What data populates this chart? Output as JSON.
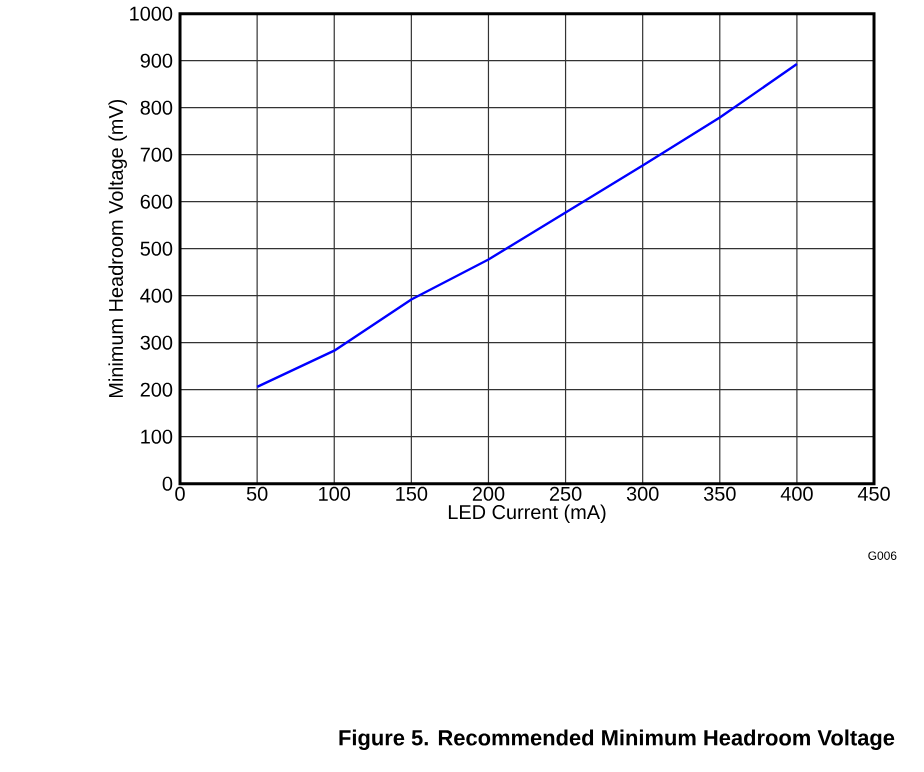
{
  "chart_data": {
    "type": "line",
    "title": "Figure 5. Recommended Minimum Headroom Voltage",
    "xlabel": "LED Current (mA)",
    "ylabel": "Minimum Headroom Voltage (mV)",
    "annotations": [
      "G006"
    ],
    "x": [
      50,
      100,
      150,
      200,
      250,
      300,
      350,
      400
    ],
    "series": [
      {
        "color": "#0000ff",
        "values": [
          206,
          283,
          392,
          477,
          577,
          677,
          779,
          893
        ]
      }
    ],
    "xlim": [
      0,
      450
    ],
    "ylim": [
      0,
      1000
    ],
    "xticks": [
      0,
      50,
      100,
      150,
      200,
      250,
      300,
      350,
      400,
      450
    ],
    "yticks": [
      0,
      100,
      200,
      300,
      400,
      500,
      600,
      700,
      800,
      900,
      1000
    ],
    "grid": true
  }
}
